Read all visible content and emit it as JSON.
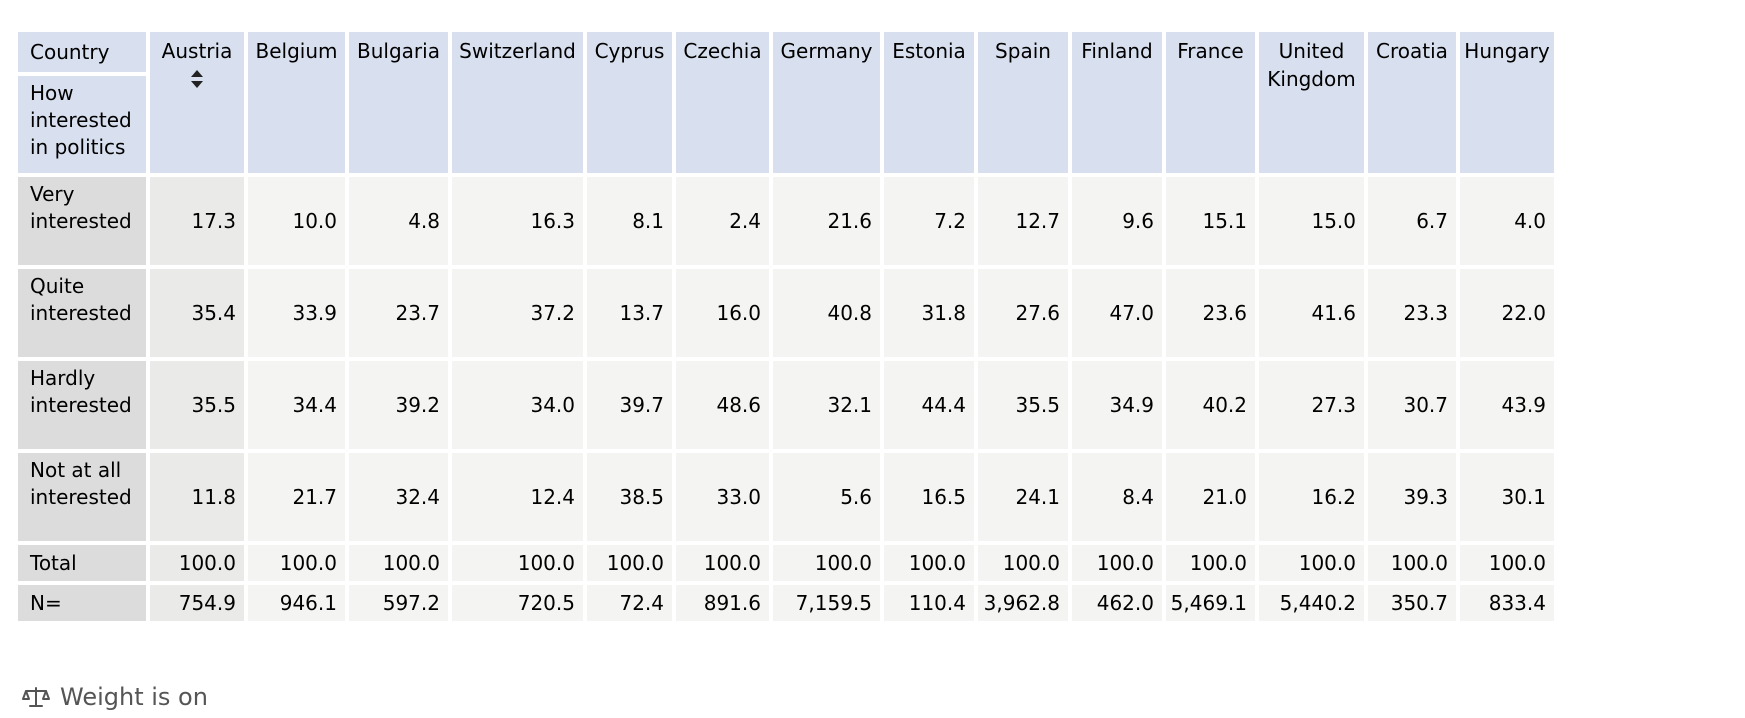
{
  "table": {
    "corner_country_label": "Country",
    "corner_measure_label": "How interested in politics",
    "columns": [
      "Austria",
      "Belgium",
      "Bulgaria",
      "Switzerland",
      "Cyprus",
      "Czechia",
      "Germany",
      "Estonia",
      "Spain",
      "Finland",
      "France",
      "United Kingdom",
      "Croatia",
      "Hungary"
    ],
    "sorted_column_index": 0,
    "rows": [
      {
        "label": "Very interested",
        "values": [
          "17.3",
          "10.0",
          "4.8",
          "16.3",
          "8.1",
          "2.4",
          "21.6",
          "7.2",
          "12.7",
          "9.6",
          "15.1",
          "15.0",
          "6.7",
          "4.0"
        ]
      },
      {
        "label": "Quite interested",
        "values": [
          "35.4",
          "33.9",
          "23.7",
          "37.2",
          "13.7",
          "16.0",
          "40.8",
          "31.8",
          "27.6",
          "47.0",
          "23.6",
          "41.6",
          "23.3",
          "22.0"
        ]
      },
      {
        "label": "Hardly interested",
        "values": [
          "35.5",
          "34.4",
          "39.2",
          "34.0",
          "39.7",
          "48.6",
          "32.1",
          "44.4",
          "35.5",
          "34.9",
          "40.2",
          "27.3",
          "30.7",
          "43.9"
        ]
      },
      {
        "label": "Not at all interested",
        "values": [
          "11.8",
          "21.7",
          "32.4",
          "12.4",
          "38.5",
          "33.0",
          "5.6",
          "16.5",
          "24.1",
          "8.4",
          "21.0",
          "16.2",
          "39.3",
          "30.1"
        ]
      },
      {
        "label": "Total",
        "values": [
          "100.0",
          "100.0",
          "100.0",
          "100.0",
          "100.0",
          "100.0",
          "100.0",
          "100.0",
          "100.0",
          "100.0",
          "100.0",
          "100.0",
          "100.0",
          "100.0"
        ]
      },
      {
        "label": "N=",
        "values": [
          "754.9",
          "946.1",
          "597.2",
          "720.5",
          "72.4",
          "891.6",
          "7,159.5",
          "110.4",
          "3,962.8",
          "462.0",
          "5,469.1",
          "5,440.2",
          "350.7",
          "833.4"
        ]
      }
    ]
  },
  "footer": {
    "icon": "scale-icon",
    "text": "Weight is on"
  },
  "colors": {
    "header_bg": "#d8dfee",
    "row_header_bg": "#dcdcdc",
    "cell_bg": "#f4f5f2",
    "sorted_cell_bg": "#eaebe8"
  }
}
